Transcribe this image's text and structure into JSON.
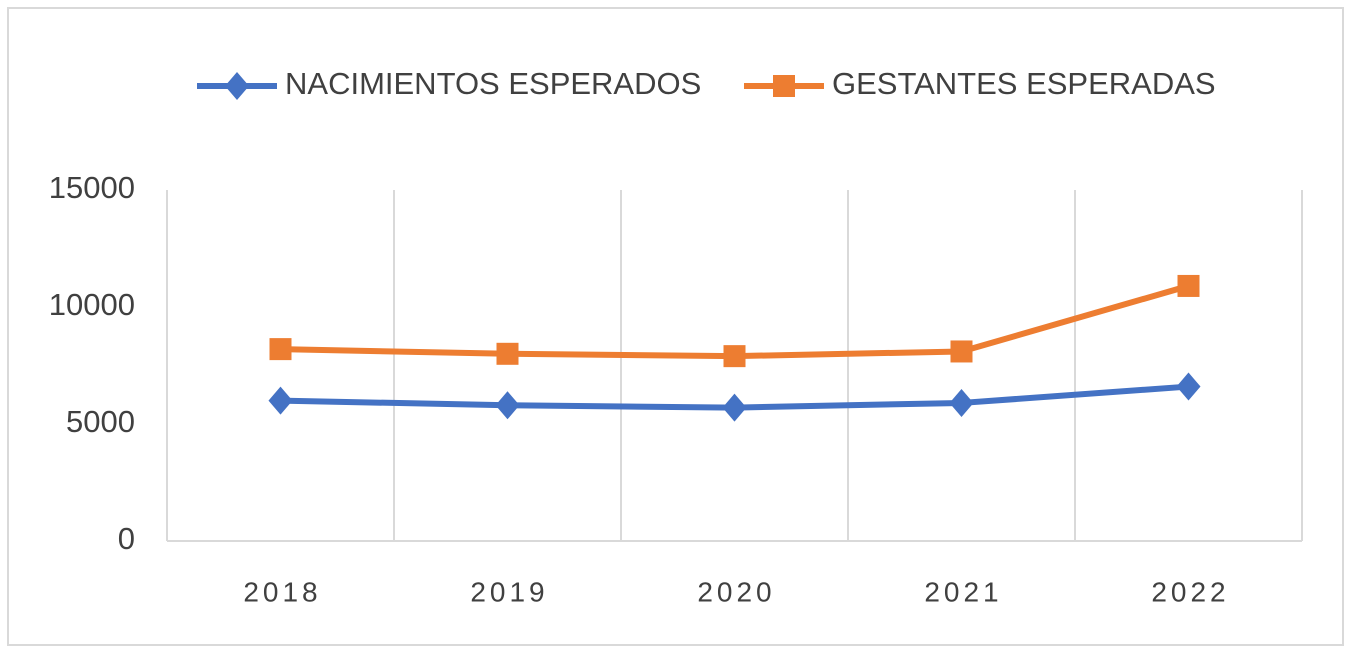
{
  "chart_data": {
    "type": "line",
    "categories": [
      "2018",
      "2019",
      "2020",
      "2021",
      "2022"
    ],
    "series": [
      {
        "name": "NACIMIENTOS ESPERADOS",
        "color": "#4472c4",
        "marker": "diamond",
        "values": [
          6000,
          5800,
          5700,
          5900,
          6600
        ]
      },
      {
        "name": "GESTANTES ESPERADAS",
        "color": "#ed7d31",
        "marker": "square",
        "values": [
          8200,
          8000,
          7900,
          8100,
          10900
        ]
      }
    ],
    "ylim": [
      0,
      15000
    ],
    "yticks": [
      0,
      5000,
      10000,
      15000
    ],
    "legend": "top",
    "grid": "vertical"
  }
}
